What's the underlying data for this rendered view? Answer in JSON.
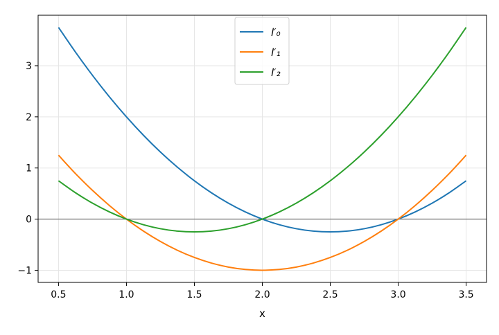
{
  "chart_data": {
    "type": "line",
    "title": "",
    "xlabel": "x",
    "ylabel": "",
    "xlim": [
      0.35,
      3.65
    ],
    "ylim": [
      -1.2375,
      3.9875
    ],
    "xticks": [
      0.5,
      1.0,
      1.5,
      2.0,
      2.5,
      3.0,
      3.5
    ],
    "xtick_labels": [
      "0.5",
      "1.0",
      "1.5",
      "2.0",
      "2.5",
      "3.0",
      "3.5"
    ],
    "yticks": [
      -1,
      0,
      1,
      2,
      3
    ],
    "ytick_labels": [
      "−1",
      "0",
      "1",
      "2",
      "3"
    ],
    "grid": true,
    "reference_line_y": 0,
    "legend_placement": "upper center",
    "x": [
      0.5,
      0.625,
      0.75,
      0.875,
      1.0,
      1.125,
      1.25,
      1.375,
      1.5,
      1.625,
      1.75,
      1.875,
      2.0,
      2.125,
      2.25,
      2.375,
      2.5,
      2.625,
      2.75,
      2.875,
      3.0,
      3.125,
      3.25,
      3.375,
      3.5
    ],
    "series": [
      {
        "name": "l′₀",
        "color": "#1f77b4",
        "values": [
          3.75,
          3.265625,
          2.8125,
          2.390625,
          2,
          1.640625,
          1.3125,
          1.015625,
          0.75,
          0.515625,
          0.3125,
          0.140625,
          0,
          -0.109375,
          -0.1875,
          -0.234375,
          -0.25,
          -0.234375,
          -0.1875,
          -0.109375,
          0,
          0.140625,
          0.3125,
          0.515625,
          0.75
        ]
      },
      {
        "name": "l′₁",
        "color": "#ff7f0e",
        "values": [
          1.25,
          0.890625,
          0.5625,
          0.265625,
          0,
          -0.234375,
          -0.4375,
          -0.609375,
          -0.75,
          -0.859375,
          -0.9375,
          -0.984375,
          -1,
          -0.984375,
          -0.9375,
          -0.859375,
          -0.75,
          -0.609375,
          -0.4375,
          -0.234375,
          0,
          0.265625,
          0.5625,
          0.890625,
          1.25
        ]
      },
      {
        "name": "l′₂",
        "color": "#2ca02c",
        "values": [
          0.75,
          0.515625,
          0.3125,
          0.140625,
          0,
          -0.109375,
          -0.1875,
          -0.234375,
          -0.25,
          -0.234375,
          -0.1875,
          -0.109375,
          0,
          0.140625,
          0.3125,
          0.515625,
          0.75,
          1.015625,
          1.3125,
          1.640625,
          2,
          2.390625,
          2.8125,
          3.265625,
          3.75
        ]
      }
    ]
  }
}
